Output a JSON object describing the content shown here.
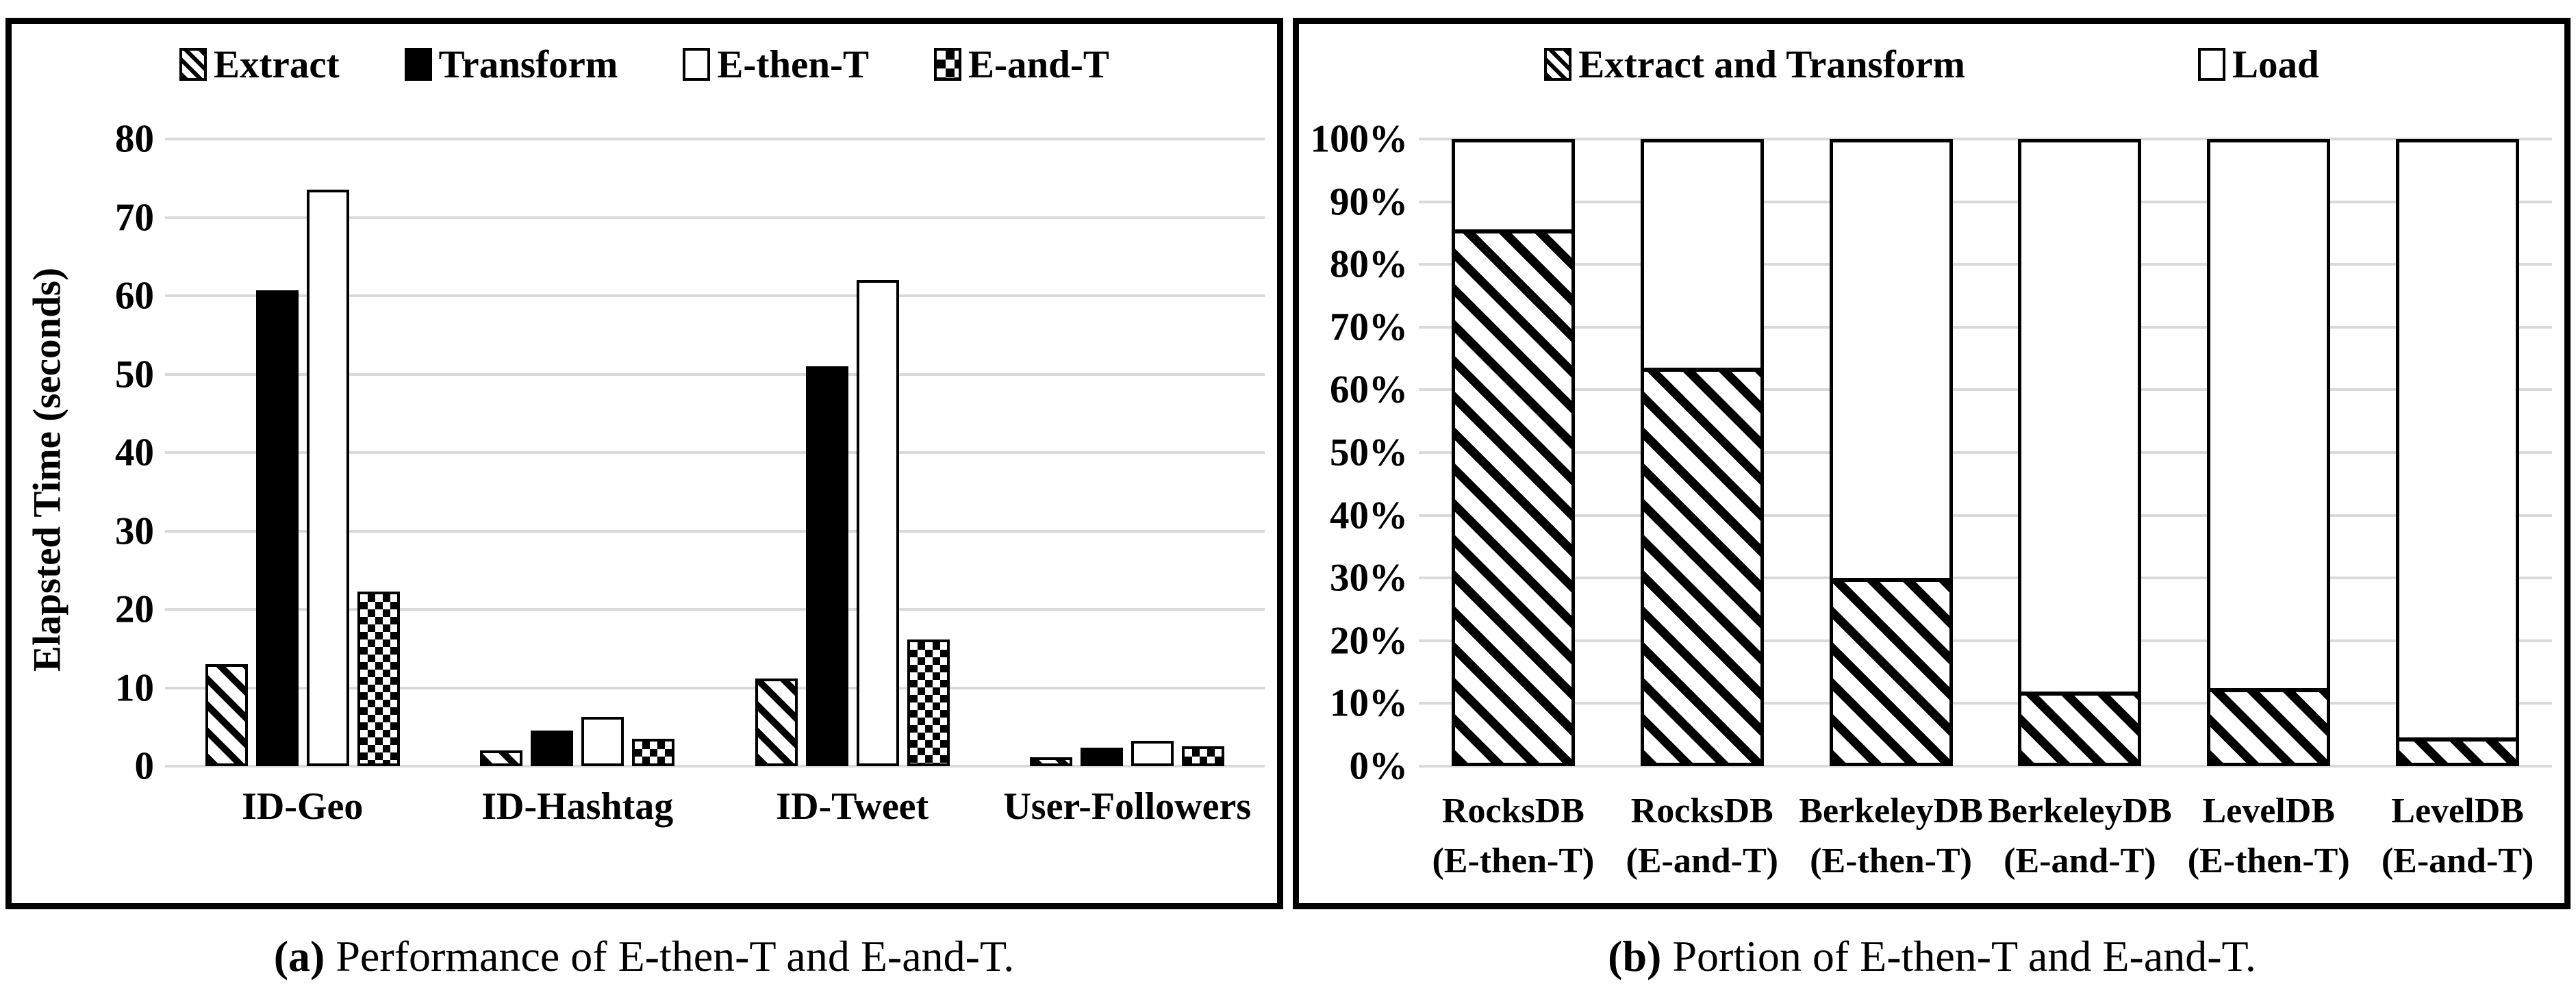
{
  "captions": {
    "a": {
      "prefix": "(a)",
      "text": "Performance of E-then-T and E-and-T."
    },
    "b": {
      "prefix": "(b)",
      "text": "Portion of E-then-T and E-and-T."
    }
  },
  "colors": {
    "gridline": "#d9d9d9",
    "bar_fill_black": "#000000",
    "bar_fill_white": "#ffffff",
    "border": "#000000"
  },
  "chart_data": [
    {
      "type": "bar",
      "panel": "a",
      "title": "",
      "xlabel": "",
      "ylabel": "Elapsted Time (seconds)",
      "ylim": [
        0,
        80
      ],
      "ytick_step": 10,
      "yticks": [
        "0",
        "10",
        "20",
        "30",
        "40",
        "50",
        "60",
        "70",
        "80"
      ],
      "grid": true,
      "legend_position": "top",
      "categories": [
        "ID-Geo",
        "ID-Hashtag",
        "ID-Tweet",
        "User-Followers"
      ],
      "series": [
        {
          "name": "Extract",
          "pattern": "hatch",
          "values": [
            13,
            2,
            11.2,
            1.1
          ]
        },
        {
          "name": "Transform",
          "pattern": "solid",
          "values": [
            60.7,
            4.5,
            51,
            2.4
          ]
        },
        {
          "name": "E-then-T",
          "pattern": "white",
          "values": [
            73.5,
            6.3,
            62,
            3.2
          ]
        },
        {
          "name": "E-and-T",
          "pattern": "checker",
          "values": [
            22.3,
            3.5,
            16.2,
            2.5
          ]
        }
      ]
    },
    {
      "type": "stacked-bar-100",
      "panel": "b",
      "title": "",
      "xlabel": "",
      "ylabel": "",
      "ylim": [
        0,
        100
      ],
      "ytick_step": 10,
      "yticks": [
        "0%",
        "10%",
        "20%",
        "30%",
        "40%",
        "50%",
        "60%",
        "70%",
        "80%",
        "90%",
        "100%"
      ],
      "grid": true,
      "legend_position": "top",
      "categories": [
        {
          "line1": "RocksDB",
          "line2": "(E-then-T)"
        },
        {
          "line1": "RocksDB",
          "line2": "(E-and-T)"
        },
        {
          "line1": "BerkeleyDB",
          "line2": "(E-then-T)"
        },
        {
          "line1": "BerkeleyDB",
          "line2": "(E-and-T)"
        },
        {
          "line1": "LevelDB",
          "line2": "(E-then-T)"
        },
        {
          "line1": "LevelDB",
          "line2": "(E-and-T)"
        }
      ],
      "series": [
        {
          "name": "Extract and Transform",
          "pattern": "hatch",
          "values": [
            85,
            63,
            29.5,
            11.3,
            11.9,
            4
          ]
        },
        {
          "name": "Load",
          "pattern": "white",
          "values": [
            15,
            37,
            70.5,
            88.7,
            88.1,
            96
          ]
        }
      ]
    }
  ]
}
